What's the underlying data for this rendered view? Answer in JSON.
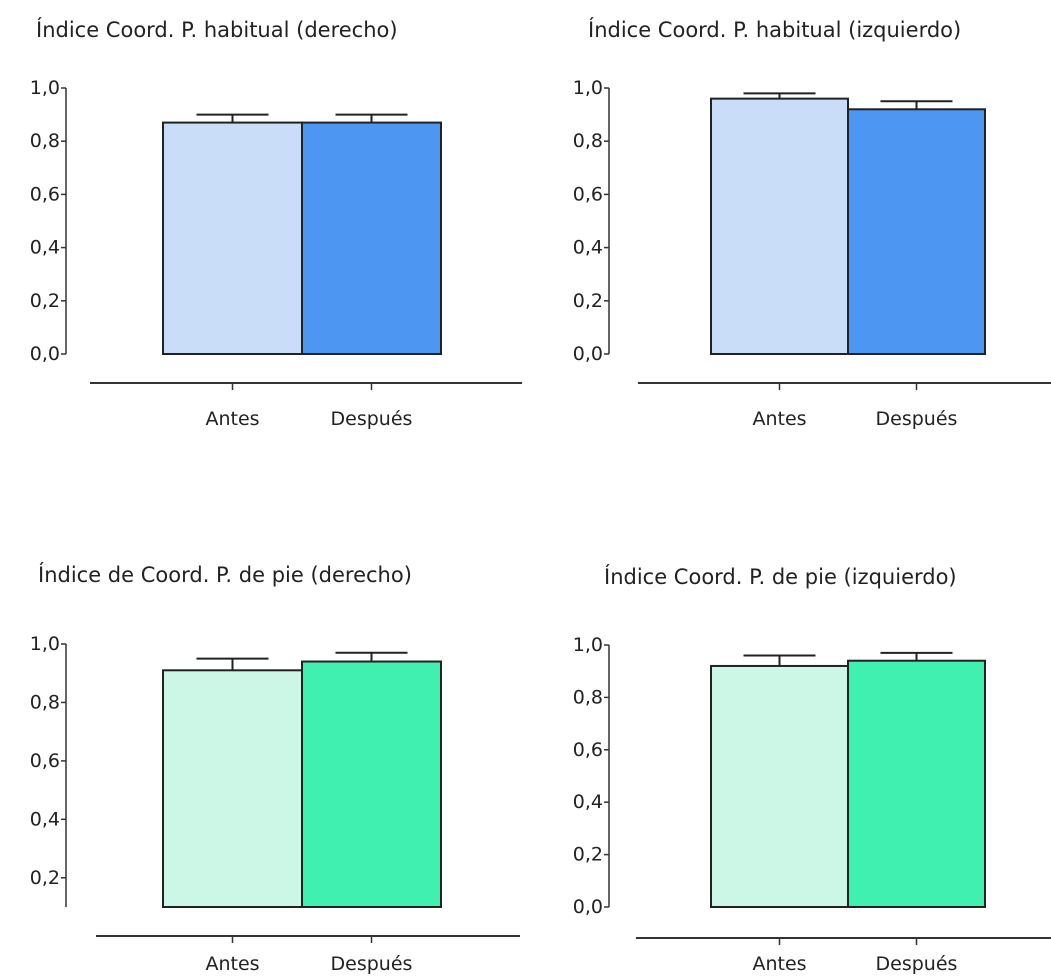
{
  "chart_data": [
    {
      "type": "bar",
      "title": "Índice Coord. P. habitual (derecho)",
      "categories": [
        "Antes",
        "Después"
      ],
      "values": [
        0.87,
        0.87
      ],
      "errors": [
        0.03,
        0.03
      ],
      "ylim": [
        0.0,
        1.0
      ],
      "yticks": [
        "0,0",
        "0,2",
        "0,4",
        "0,6",
        "0,8",
        "1,0"
      ],
      "colors": [
        "#c9ddf9",
        "#4d97f3"
      ]
    },
    {
      "type": "bar",
      "title": "Índice Coord. P. habitual (izquierdo)",
      "categories": [
        "Antes",
        "Después"
      ],
      "values": [
        0.96,
        0.92
      ],
      "errors": [
        0.02,
        0.03
      ],
      "ylim": [
        0.0,
        1.0
      ],
      "yticks": [
        "0,0",
        "0,2",
        "0,4",
        "0,6",
        "0,8",
        "1,0"
      ],
      "colors": [
        "#c9ddf9",
        "#4d97f3"
      ]
    },
    {
      "type": "bar",
      "title": "Índice de Coord. P. de pie (derecho)",
      "categories": [
        "Antes",
        "Después"
      ],
      "values": [
        0.91,
        0.94
      ],
      "errors": [
        0.04,
        0.03
      ],
      "ylim": [
        0.1,
        1.0
      ],
      "yticks": [
        "0,2",
        "0,4",
        "0,6",
        "0,8",
        "1,0"
      ],
      "colors": [
        "#ccf7e6",
        "#3ff0b0"
      ]
    },
    {
      "type": "bar",
      "title": "Índice Coord. P. de pie (izquierdo)",
      "categories": [
        "Antes",
        "Después"
      ],
      "values": [
        0.92,
        0.94
      ],
      "errors": [
        0.04,
        0.03
      ],
      "ylim": [
        0.0,
        1.0
      ],
      "yticks": [
        "0,0",
        "0,2",
        "0,4",
        "0,6",
        "0,8",
        "1,0"
      ],
      "colors": [
        "#ccf7e6",
        "#3ff0b0"
      ]
    }
  ]
}
